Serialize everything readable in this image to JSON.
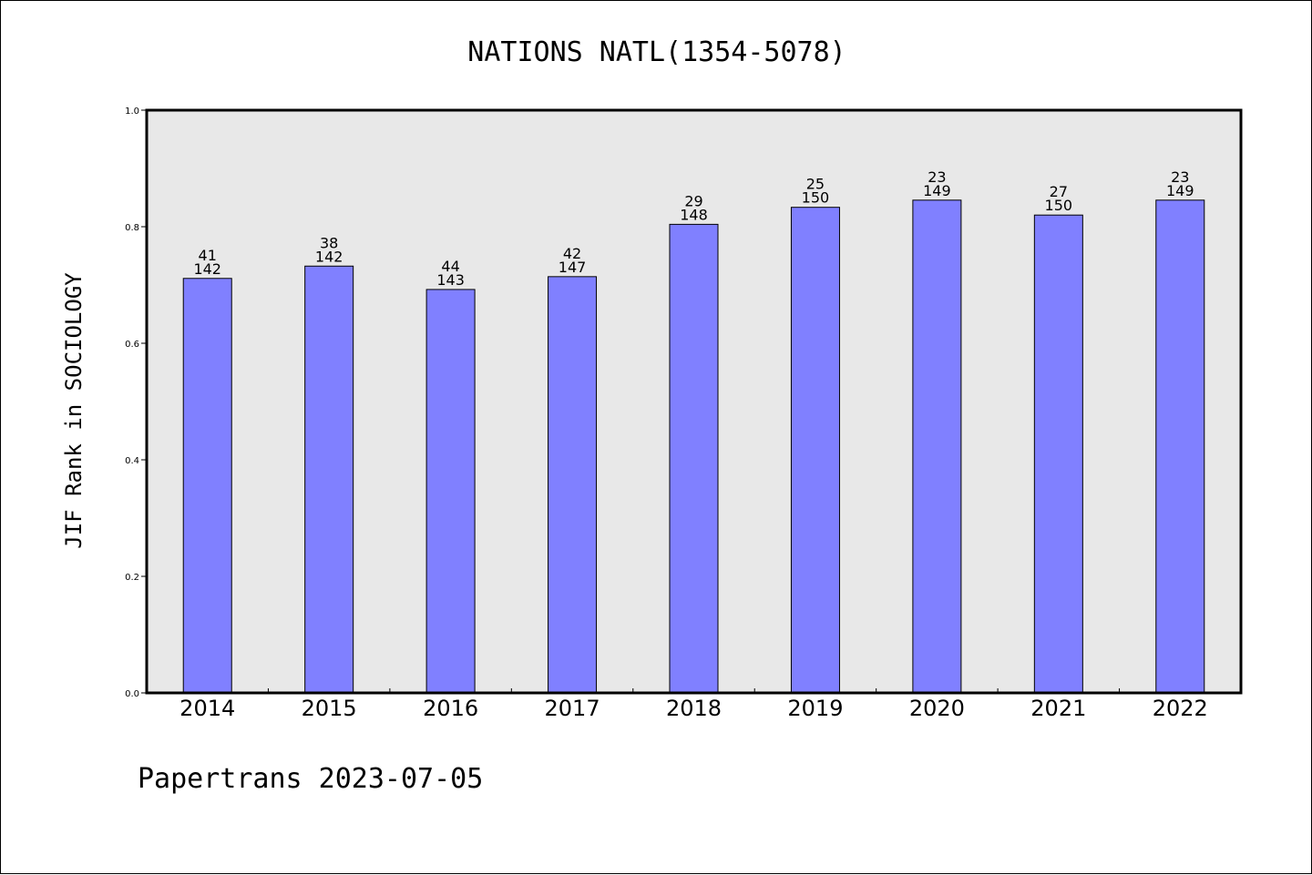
{
  "chart_data": {
    "type": "bar",
    "title": "NATIONS NATL(1354-5078)",
    "xlabel": "",
    "ylabel": "JIF Rank in SOCIOLOGY",
    "ylim": [
      0,
      1.0
    ],
    "yticks": [
      "0.0",
      "0.2",
      "0.4",
      "0.6",
      "0.8",
      "1.0"
    ],
    "categories": [
      "2014",
      "2015",
      "2016",
      "2017",
      "2018",
      "2019",
      "2020",
      "2021",
      "2022"
    ],
    "values": [
      0.7113,
      0.7324,
      0.6923,
      0.7143,
      0.8041,
      0.8333,
      0.8456,
      0.82,
      0.8456
    ],
    "rank": [
      "41",
      "38",
      "44",
      "42",
      "29",
      "25",
      "23",
      "27",
      "23"
    ],
    "total": [
      "142",
      "142",
      "143",
      "147",
      "148",
      "150",
      "149",
      "150",
      "149"
    ],
    "grid": false,
    "colors": {
      "bar": "#8080ff",
      "plot_bg": "#e8e8e8",
      "bar_edge": "#000000"
    }
  },
  "footer": "Papertrans 2023-07-05"
}
